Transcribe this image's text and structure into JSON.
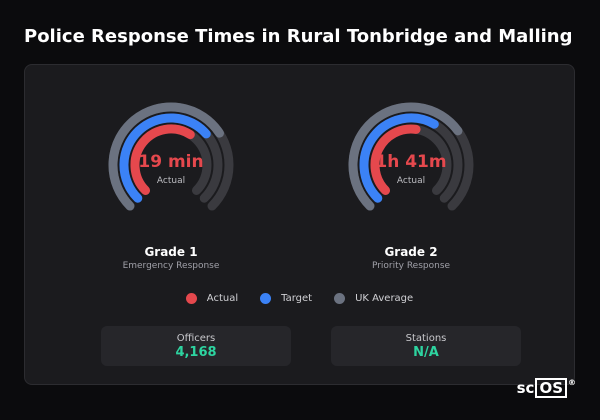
{
  "title": "Police Response Times in Rural Tonbridge and Malling",
  "colors": {
    "actual": "#e5484d",
    "target": "#3b82f6",
    "uk_average": "#6b7280",
    "track": "#3a3a3f",
    "stat_value": "#2dd4a0"
  },
  "chart_data": {
    "type": "radial-gauge",
    "series": [
      "Actual",
      "Target",
      "UK Average"
    ],
    "gauges": [
      {
        "name": "Grade 1",
        "subtitle": "Emergency Response",
        "value_label": "19 min",
        "value_caption": "Actual",
        "actual_fraction": 0.62,
        "target_fraction": 0.68,
        "uk_average_fraction": 0.71
      },
      {
        "name": "Grade 2",
        "subtitle": "Priority Response",
        "value_label": "1h 41m",
        "value_caption": "Actual",
        "actual_fraction": 0.53,
        "target_fraction": 0.61,
        "uk_average_fraction": 0.7
      }
    ]
  },
  "legend": [
    "Actual",
    "Target",
    "UK Average"
  ],
  "stats": [
    {
      "label": "Officers",
      "value": "4,168"
    },
    {
      "label": "Stations",
      "value": "N/A"
    }
  ],
  "logo": {
    "text_left": "sc",
    "text_box": "OS",
    "mark": "®"
  }
}
